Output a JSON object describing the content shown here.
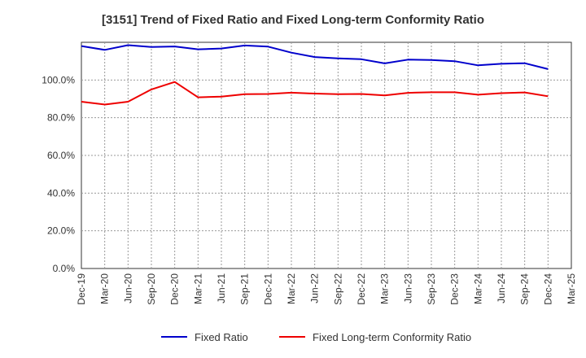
{
  "chart_data": {
    "type": "line",
    "title": "[3151]  Trend of Fixed Ratio and Fixed Long-term Conformity Ratio",
    "xlabel": "",
    "ylabel": "",
    "categories": [
      "Dec-19",
      "Mar-20",
      "Jun-20",
      "Sep-20",
      "Dec-20",
      "Mar-21",
      "Jun-21",
      "Sep-21",
      "Dec-21",
      "Mar-22",
      "Jun-22",
      "Sep-22",
      "Dec-22",
      "Mar-23",
      "Jun-23",
      "Sep-23",
      "Dec-23",
      "Mar-24",
      "Jun-24",
      "Sep-24",
      "Dec-24",
      "Mar-25"
    ],
    "ylim": [
      0,
      120
    ],
    "yticks": [
      0,
      20,
      40,
      60,
      80,
      100
    ],
    "ytick_labels": [
      "0.0%",
      "20.0%",
      "40.0%",
      "60.0%",
      "80.0%",
      "100.0%"
    ],
    "grid": true,
    "legend_position": "bottom",
    "series": [
      {
        "name": "Fixed Ratio",
        "color": "#0000cc",
        "values": [
          118.0,
          116.0,
          118.5,
          117.5,
          117.8,
          116.3,
          116.7,
          118.3,
          117.7,
          114.5,
          112.2,
          111.5,
          111.0,
          108.8,
          110.8,
          110.6,
          110.0,
          107.8,
          108.6,
          108.9,
          105.8,
          null
        ]
      },
      {
        "name": "Fixed Long-term Conformity Ratio",
        "color": "#ee0000",
        "values": [
          88.5,
          87.0,
          88.5,
          95.0,
          99.0,
          90.8,
          91.2,
          92.5,
          92.6,
          93.3,
          92.8,
          92.5,
          92.6,
          91.8,
          93.2,
          93.5,
          93.5,
          92.2,
          93.0,
          93.4,
          91.4,
          null
        ]
      }
    ]
  }
}
